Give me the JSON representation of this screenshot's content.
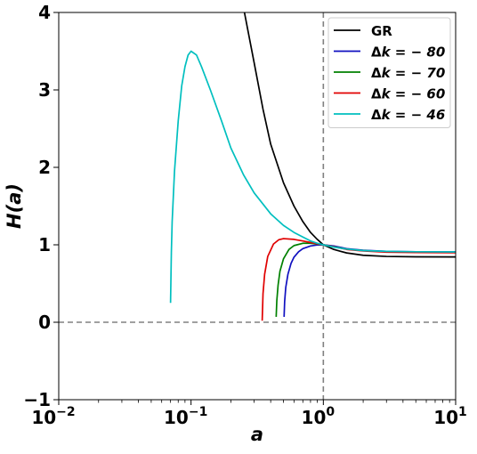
{
  "chart_data": {
    "type": "line",
    "xlabel": "a",
    "ylabel": "H(a)",
    "x_scale": "log",
    "xlim": [
      0.01,
      10
    ],
    "ylim": [
      -1,
      4
    ],
    "x_ticks": [
      {
        "value": 0.01,
        "base": "10",
        "exp": "−2"
      },
      {
        "value": 0.1,
        "base": "10",
        "exp": "−1"
      },
      {
        "value": 1,
        "base": "10",
        "exp": "0"
      },
      {
        "value": 10,
        "base": "10",
        "exp": "1"
      }
    ],
    "y_ticks": [
      {
        "value": -1,
        "label": "−1"
      },
      {
        "value": 0,
        "label": "0"
      },
      {
        "value": 1,
        "label": "1"
      },
      {
        "value": 2,
        "label": "2"
      },
      {
        "value": 3,
        "label": "3"
      },
      {
        "value": 4,
        "label": "4"
      }
    ],
    "reference_lines": [
      {
        "orientation": "vertical",
        "value": 1,
        "style": "dashed",
        "color": "#808080"
      },
      {
        "orientation": "horizontal",
        "value": 0,
        "style": "dashed",
        "color": "#808080"
      }
    ],
    "grid": false,
    "legend_position": "top-right",
    "series": [
      {
        "name": "GR",
        "name_prefix": "",
        "name_value": "GR",
        "color": "#000000",
        "points": [
          [
            0.25,
            4.05
          ],
          [
            0.3,
            3.35
          ],
          [
            0.35,
            2.75
          ],
          [
            0.4,
            2.3
          ],
          [
            0.5,
            1.8
          ],
          [
            0.6,
            1.5
          ],
          [
            0.7,
            1.3
          ],
          [
            0.8,
            1.16
          ],
          [
            0.9,
            1.07
          ],
          [
            1.0,
            1.0
          ],
          [
            1.2,
            0.94
          ],
          [
            1.5,
            0.895
          ],
          [
            2.0,
            0.865
          ],
          [
            3.0,
            0.85
          ],
          [
            5.0,
            0.845
          ],
          [
            10.0,
            0.843
          ]
        ]
      },
      {
        "name": "Δk = −80",
        "name_prefix": "Δ",
        "name_value": "k = − 80",
        "color": "#1010c0",
        "points": [
          [
            0.505,
            0.07
          ],
          [
            0.51,
            0.27
          ],
          [
            0.52,
            0.45
          ],
          [
            0.54,
            0.62
          ],
          [
            0.57,
            0.76
          ],
          [
            0.6,
            0.84
          ],
          [
            0.65,
            0.91
          ],
          [
            0.7,
            0.95
          ],
          [
            0.8,
            0.985
          ],
          [
            0.9,
            0.998
          ],
          [
            1.0,
            1.0
          ],
          [
            1.2,
            0.985
          ],
          [
            1.5,
            0.95
          ],
          [
            2.0,
            0.93
          ],
          [
            3.0,
            0.915
          ],
          [
            5.0,
            0.91
          ],
          [
            10.0,
            0.908
          ]
        ]
      },
      {
        "name": "Δk = −70",
        "name_prefix": "Δ",
        "name_value": "k = − 70",
        "color": "#008000",
        "points": [
          [
            0.44,
            0.07
          ],
          [
            0.445,
            0.28
          ],
          [
            0.455,
            0.48
          ],
          [
            0.47,
            0.66
          ],
          [
            0.5,
            0.82
          ],
          [
            0.55,
            0.94
          ],
          [
            0.6,
            0.99
          ],
          [
            0.7,
            1.02
          ],
          [
            0.8,
            1.02
          ],
          [
            0.9,
            1.01
          ],
          [
            1.0,
            1.0
          ],
          [
            1.2,
            0.975
          ],
          [
            1.5,
            0.945
          ],
          [
            2.0,
            0.925
          ],
          [
            3.0,
            0.91
          ],
          [
            5.0,
            0.905
          ],
          [
            10.0,
            0.903
          ]
        ]
      },
      {
        "name": "Δk = −60",
        "name_prefix": "Δ",
        "name_value": "k = − 60",
        "color": "#e00000",
        "points": [
          [
            0.345,
            0.02
          ],
          [
            0.35,
            0.37
          ],
          [
            0.36,
            0.62
          ],
          [
            0.38,
            0.85
          ],
          [
            0.42,
            1.01
          ],
          [
            0.46,
            1.065
          ],
          [
            0.5,
            1.08
          ],
          [
            0.6,
            1.07
          ],
          [
            0.7,
            1.05
          ],
          [
            0.8,
            1.03
          ],
          [
            0.9,
            1.013
          ],
          [
            1.0,
            1.0
          ],
          [
            1.2,
            0.975
          ],
          [
            1.5,
            0.94
          ],
          [
            2.0,
            0.92
          ],
          [
            3.0,
            0.905
          ],
          [
            5.0,
            0.9
          ],
          [
            10.0,
            0.898
          ]
        ]
      },
      {
        "name": "Δk = −46",
        "name_prefix": "Δ",
        "name_value": "k = − 46",
        "color": "#00bfbf",
        "points": [
          [
            0.07,
            0.25
          ],
          [
            0.071,
            0.9
          ],
          [
            0.072,
            1.3
          ],
          [
            0.075,
            1.95
          ],
          [
            0.08,
            2.6
          ],
          [
            0.085,
            3.05
          ],
          [
            0.09,
            3.3
          ],
          [
            0.095,
            3.45
          ],
          [
            0.1,
            3.5
          ],
          [
            0.11,
            3.45
          ],
          [
            0.12,
            3.3
          ],
          [
            0.14,
            3.0
          ],
          [
            0.17,
            2.6
          ],
          [
            0.2,
            2.25
          ],
          [
            0.25,
            1.9
          ],
          [
            0.3,
            1.67
          ],
          [
            0.4,
            1.4
          ],
          [
            0.5,
            1.25
          ],
          [
            0.6,
            1.16
          ],
          [
            0.7,
            1.1
          ],
          [
            0.8,
            1.05
          ],
          [
            0.9,
            1.02
          ],
          [
            1.0,
            1.0
          ],
          [
            1.2,
            0.97
          ],
          [
            1.5,
            0.945
          ],
          [
            2.0,
            0.925
          ],
          [
            3.0,
            0.915
          ],
          [
            5.0,
            0.91
          ],
          [
            10.0,
            0.908
          ]
        ]
      }
    ]
  }
}
